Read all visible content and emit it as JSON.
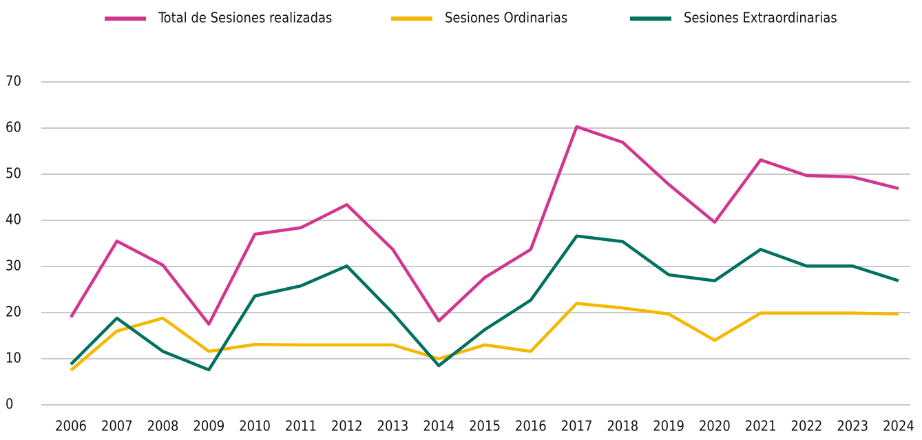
{
  "chart_data": {
    "type": "line",
    "categories": [
      "2006",
      "2007",
      "2008",
      "2009",
      "2010",
      "2011",
      "2012",
      "2013",
      "2014",
      "2015",
      "2016",
      "2017",
      "2018",
      "2019",
      "2020",
      "2021",
      "2022",
      "2023",
      "2024"
    ],
    "series": [
      {
        "name": "Total de Sesiones realizadas",
        "color": "#d1368f",
        "values": [
          19,
          35.5,
          30.3,
          17.5,
          37,
          38.4,
          43.4,
          33.7,
          18.2,
          27.6,
          33.7,
          60.3,
          56.9,
          47.8,
          39.6,
          53.1,
          49.7,
          49.4,
          46.9
        ]
      },
      {
        "name": "Sesiones Ordinarias",
        "color": "#f5b800",
        "values": [
          7.5,
          16,
          18.8,
          11.6,
          13.1,
          13,
          13,
          13,
          10,
          13,
          11.6,
          22,
          21,
          19.7,
          14,
          19.9,
          19.9,
          19.9,
          19.7
        ]
      },
      {
        "name": "Sesiones Extraordinarias",
        "color": "#00705f",
        "values": [
          8.8,
          18.8,
          11.6,
          7.6,
          23.6,
          25.8,
          30.1,
          19.9,
          8.5,
          16.3,
          22.7,
          36.6,
          35.4,
          28.2,
          26.9,
          33.7,
          30.1,
          30.1,
          26.9
        ]
      }
    ],
    "ylim": [
      0,
      70
    ],
    "yticks": [
      0,
      10,
      20,
      30,
      40,
      50,
      60,
      70
    ],
    "grid": true,
    "legend": "top"
  }
}
